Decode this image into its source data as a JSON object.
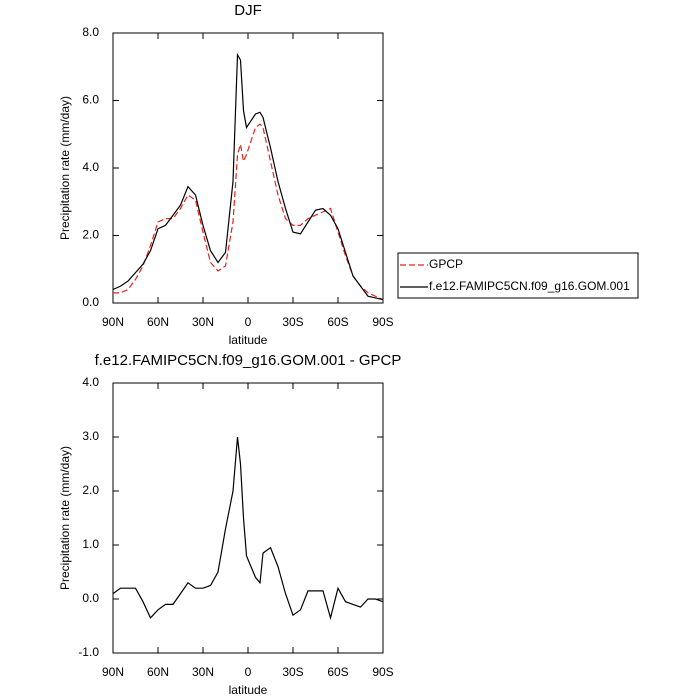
{
  "chart_data": [
    {
      "type": "line",
      "title": "DJF",
      "ylabel": "Precipitation rate (mm/day)",
      "xlabel": "latitude",
      "x": [
        90,
        85,
        80,
        75,
        70,
        65,
        60,
        55,
        50,
        45,
        40,
        35,
        30,
        25,
        20,
        15,
        10,
        7,
        5,
        3,
        1,
        -5,
        -8,
        -10,
        -15,
        -20,
        -25,
        -30,
        -35,
        -40,
        -45,
        -50,
        -55,
        -60,
        -65,
        -70,
        -75,
        -80,
        -85,
        -90
      ],
      "xlim": [
        90,
        -90
      ],
      "xticks": [
        {
          "value": 90,
          "label": "90N"
        },
        {
          "value": 60,
          "label": "60N"
        },
        {
          "value": 30,
          "label": "30N"
        },
        0,
        {
          "value": -30,
          "label": "30S"
        },
        {
          "value": -60,
          "label": "60S"
        },
        {
          "value": -90,
          "label": "90S"
        }
      ],
      "ylim": [
        0,
        8
      ],
      "yticks": [
        {
          "value": 0,
          "label": "0.0"
        },
        {
          "value": 2,
          "label": "2.0"
        },
        {
          "value": 4,
          "label": "4.0"
        },
        {
          "value": 6,
          "label": "6.0"
        },
        {
          "value": 8,
          "label": "8.0"
        }
      ],
      "legend": "right",
      "series": [
        {
          "name": "GPCP",
          "color": "#e8221c",
          "dashed": true,
          "values": [
            0.3,
            0.3,
            0.4,
            0.7,
            1.1,
            1.7,
            2.4,
            2.5,
            2.5,
            2.8,
            3.2,
            3.05,
            2.1,
            1.2,
            0.95,
            1.1,
            2.4,
            4.4,
            4.7,
            4.2,
            4.4,
            5.2,
            5.3,
            5.2,
            4.2,
            3.2,
            2.5,
            2.3,
            2.3,
            2.5,
            2.6,
            2.7,
            2.8,
            2.1,
            1.4,
            0.8,
            0.5,
            0.3,
            0.2,
            0.1
          ]
        },
        {
          "name": "f.e12.FAMIPC5CN.f09_g16.GOM.001",
          "color": "#000000",
          "dashed": false,
          "values": [
            0.4,
            0.5,
            0.65,
            0.9,
            1.15,
            1.55,
            2.2,
            2.3,
            2.6,
            2.9,
            3.45,
            3.2,
            2.3,
            1.55,
            1.2,
            1.5,
            3.6,
            7.35,
            7.2,
            5.7,
            5.2,
            5.6,
            5.65,
            5.5,
            4.6,
            3.6,
            2.8,
            2.1,
            2.05,
            2.4,
            2.75,
            2.8,
            2.6,
            2.2,
            1.5,
            0.8,
            0.5,
            0.2,
            0.15,
            0.1
          ]
        }
      ]
    },
    {
      "type": "line",
      "title": "f.e12.FAMIPC5CN.f09_g16.GOM.001 - GPCP",
      "ylabel": "Precipitation rate (mm/day)",
      "xlabel": "latitude",
      "x": [
        90,
        85,
        80,
        75,
        70,
        65,
        60,
        55,
        50,
        45,
        40,
        35,
        30,
        25,
        20,
        15,
        10,
        7,
        5,
        3,
        1,
        -5,
        -8,
        -10,
        -15,
        -20,
        -25,
        -30,
        -35,
        -40,
        -45,
        -50,
        -55,
        -60,
        -65,
        -70,
        -75,
        -80,
        -85,
        -90
      ],
      "xlim": [
        90,
        -90
      ],
      "xticks": [
        {
          "value": 90,
          "label": "90N"
        },
        {
          "value": 60,
          "label": "60N"
        },
        {
          "value": 30,
          "label": "30N"
        },
        0,
        {
          "value": -30,
          "label": "30S"
        },
        {
          "value": -60,
          "label": "60S"
        },
        {
          "value": -90,
          "label": "90S"
        }
      ],
      "ylim": [
        -1,
        4
      ],
      "yticks": [
        {
          "value": -1,
          "label": "-1.0"
        },
        {
          "value": 0,
          "label": "0.0"
        },
        {
          "value": 1,
          "label": "1.0"
        },
        {
          "value": 2,
          "label": "2.0"
        },
        {
          "value": 3,
          "label": "3.0"
        },
        {
          "value": 4,
          "label": "4.0"
        }
      ],
      "series": [
        {
          "color": "#000000",
          "dashed": false,
          "values": [
            0.1,
            0.2,
            0.2,
            0.2,
            -0.05,
            -0.35,
            -0.2,
            -0.1,
            -0.1,
            0.1,
            0.3,
            0.2,
            0.2,
            0.25,
            0.5,
            1.3,
            2.0,
            3.0,
            2.5,
            1.5,
            0.8,
            0.4,
            0.3,
            0.85,
            0.95,
            0.6,
            0.1,
            -0.3,
            -0.2,
            0.15,
            0.15,
            0.15,
            -0.35,
            0.2,
            -0.05,
            -0.1,
            -0.15,
            0.0,
            0.0,
            -0.05
          ]
        }
      ]
    }
  ]
}
